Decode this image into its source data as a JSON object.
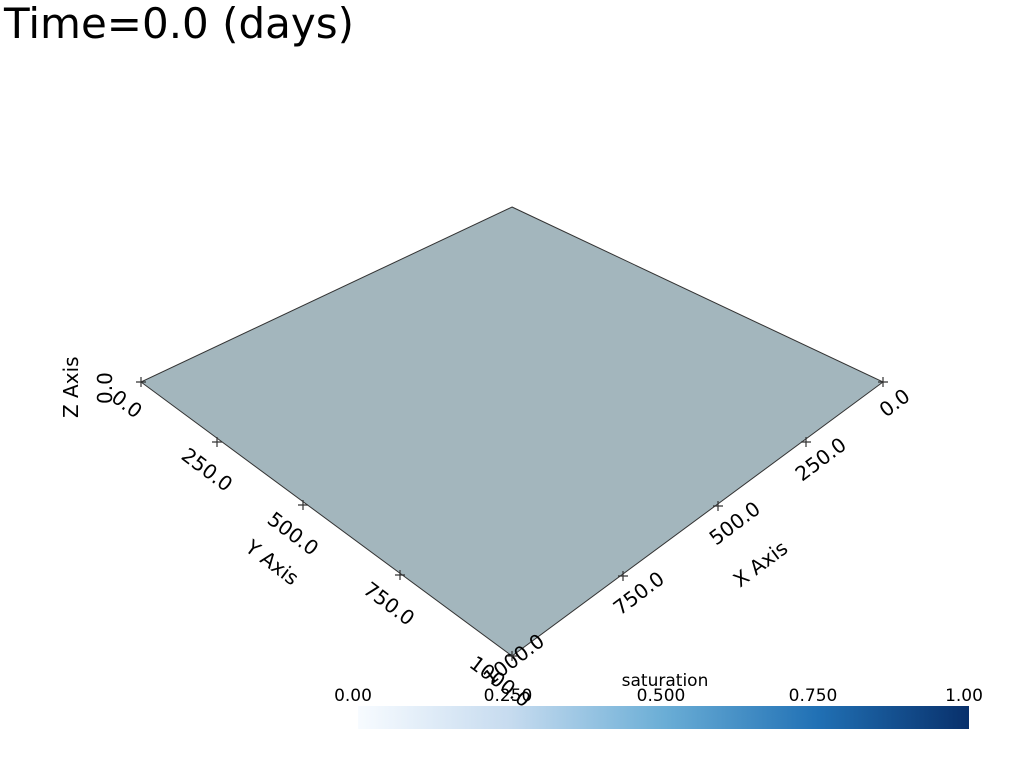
{
  "title": "Time=0.0 (days)",
  "plane_color": "#a3b6bd",
  "edge_color": "#333333",
  "axes": {
    "x": {
      "label": "X Axis",
      "ticks": [
        "0.0",
        "250.0",
        "500.0",
        "750.0",
        "1000.0"
      ]
    },
    "y": {
      "label": "Y Axis",
      "ticks": [
        "0.0",
        "250.0",
        "500.0",
        "750.0",
        "1000.0"
      ]
    },
    "z": {
      "label": "Z Axis",
      "tick": "0.0"
    }
  },
  "colorbar": {
    "title": "saturation",
    "colormap": "Blues",
    "range": [
      0,
      1
    ],
    "ticks": [
      "0.00",
      "0.250",
      "0.500",
      "0.750",
      "1.00"
    ],
    "colors": [
      "#f7fbff",
      "#c6dbef",
      "#6baed6",
      "#2171b5",
      "#08306b"
    ]
  }
}
